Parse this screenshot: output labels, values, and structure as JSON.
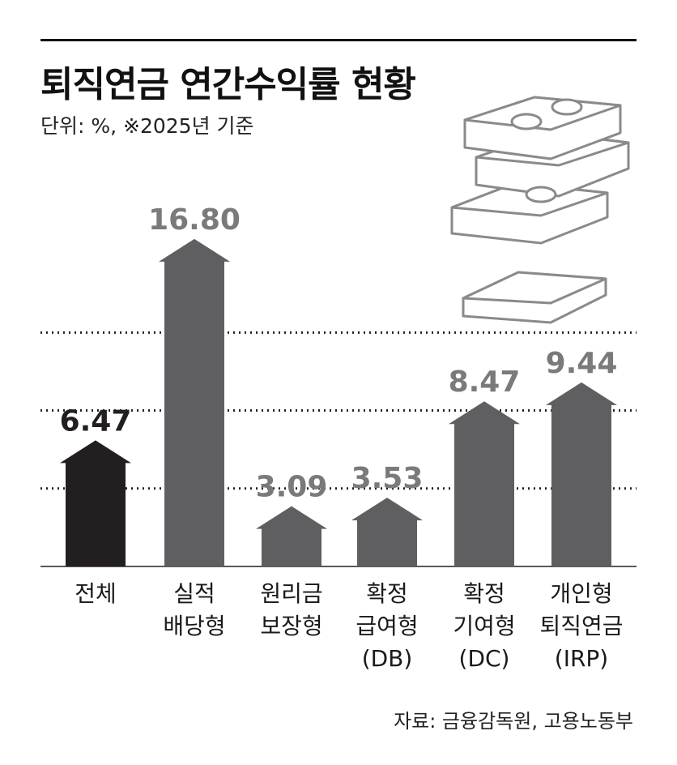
{
  "title": "퇴직연금 연간수익률 현황",
  "unit_note": "단위: %, ※2025년 기준",
  "source": "자료: 금융감독원, 고용노동부",
  "colors": {
    "highlight": "#231f20",
    "bar": "#5f5f62",
    "value_gray": "#7a7a7c",
    "grid": "#222222"
  },
  "illustration": "money-stack-icon",
  "chart_data": {
    "type": "bar",
    "title": "퇴직연금 연간수익률 현황",
    "ylabel": "",
    "xlabel": "",
    "grid": "dotted horizontal",
    "highlight_index": 0,
    "ylim": [
      0,
      18
    ],
    "gridlines": [
      4,
      8,
      12
    ],
    "categories": [
      [
        "전체"
      ],
      [
        "실적",
        "배당형"
      ],
      [
        "원리금",
        "보장형"
      ],
      [
        "확정",
        "급여형",
        "(DB)"
      ],
      [
        "확정",
        "기여형",
        "(DC)"
      ],
      [
        "개인형",
        "퇴직연금",
        "(IRP)"
      ]
    ],
    "values": [
      6.47,
      16.8,
      3.09,
      3.53,
      8.47,
      9.44
    ],
    "value_labels": [
      "6.47",
      "16.80",
      "3.09",
      "3.53",
      "8.47",
      "9.44"
    ]
  }
}
